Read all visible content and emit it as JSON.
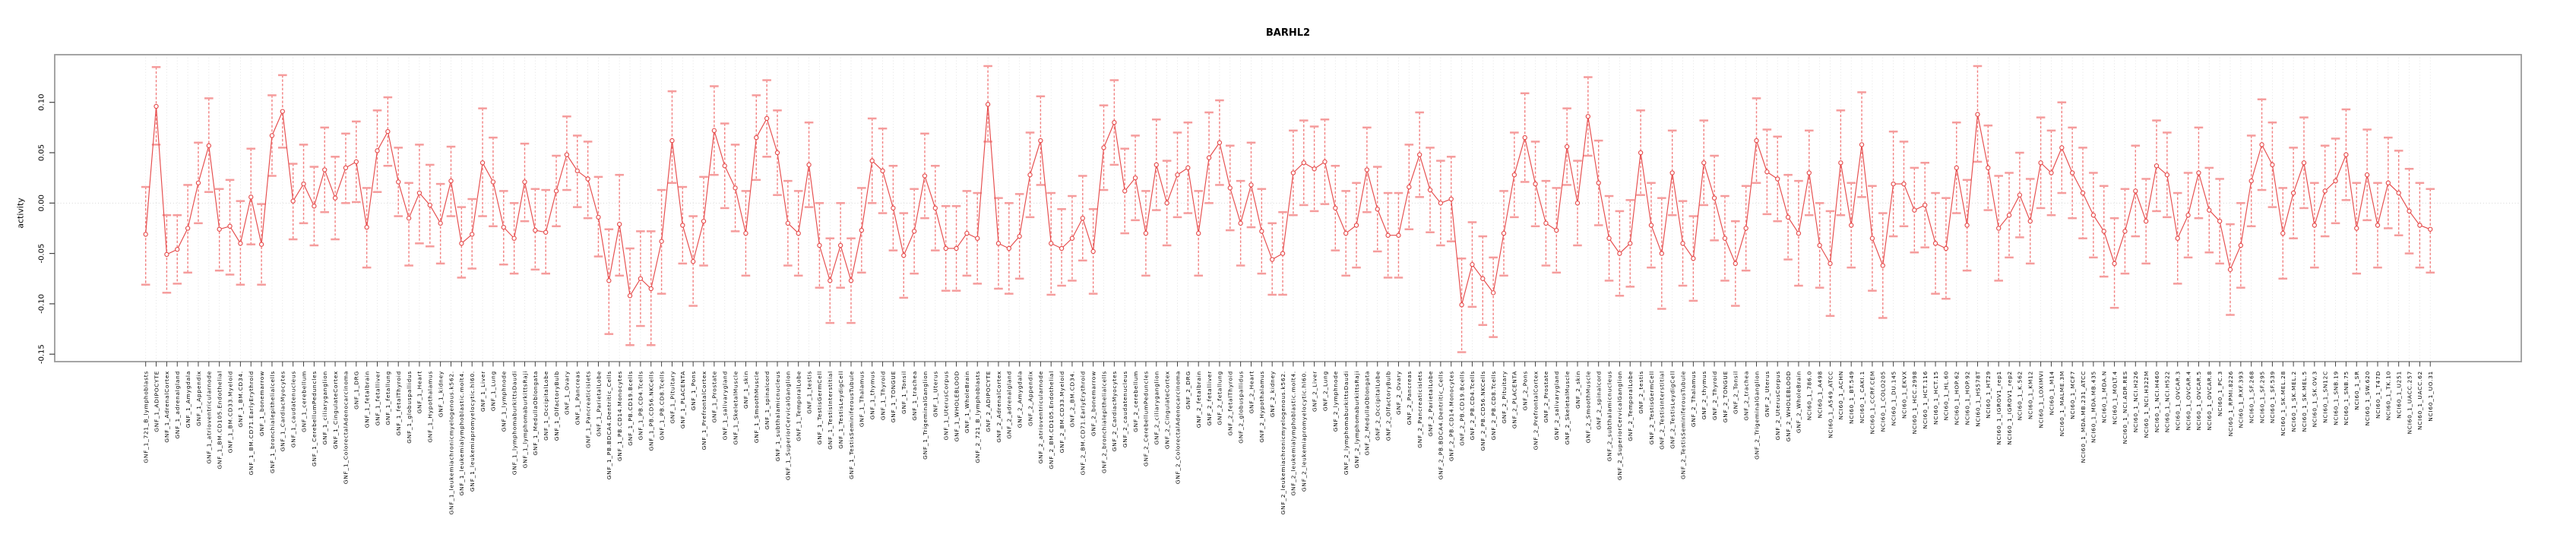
{
  "title": "BARHL2",
  "chart_data": {
    "type": "line",
    "subtype": "error-bar-series",
    "title": "BARHL2",
    "xlabel": "",
    "ylabel": "activity",
    "ylim": [
      -0.157,
      0.147
    ],
    "yticks": [
      0.1,
      0.05,
      0.0,
      -0.05,
      -0.1,
      -0.15
    ],
    "ytick_labels": [
      "0.10",
      "0.05",
      "0.00",
      "-0.05",
      "-0.10",
      "-0.15"
    ],
    "grid": "vertical-dotted-per-category",
    "zero_line": true,
    "legend": "none",
    "colors": {
      "line": "#e64c4c",
      "marker_stroke": "#e64c4c",
      "marker_fill": "#ffffff",
      "stem": "#f28080",
      "cap": "#f59c9c",
      "box": "#9b9b9b",
      "grid": "#dedede",
      "zero": "#cfcfcf",
      "tick": "#444444",
      "text": "#000000"
    },
    "categories": [
      "GNF_1_721_B_lymphoblasts",
      "GNF_1_ADIPOCYTE",
      "GNF_1_AdrenalCortex",
      "GNF_1_adrenalgland",
      "GNF_1_Amygdala",
      "GNF_1_Appendix",
      "GNF_1_atrioventricularnode",
      "GNF_1_BM.CD105.Endothelial",
      "GNF_1_BM.CD33.Myeloid",
      "GNF_1_BM.CD34.",
      "GNF_1_BM.CD71.EarlyErythroid",
      "GNF_1_bonemarrow",
      "GNF_1_bronchialepithelialcells",
      "GNF_1_CardiacMyocytes",
      "GNF_1_caudatenucleus",
      "GNF_1_cerebellum",
      "GNF_1_CerebellumPeduncles",
      "GNF_1_ciliaryganglion",
      "GNF_1_CingulateCortex",
      "GNF_1_ColorectalAdenocarcinoma",
      "GNF_1_DRG",
      "GNF_1_fetalbrain",
      "GNF_1_fetalliver",
      "GNF_1_fetallung",
      "GNF_1_fetalThyroid",
      "GNF_1_globuspallidus",
      "GNF_1_Heart",
      "GNF_1_Hypothalamus",
      "GNF_1_kidney",
      "GNF_1_leukemiachronicmyelogenous.k562.",
      "GNF_1_leukemialymphoblastic.molt4.",
      "GNF_1_leukemiapromyelocytic.hl60.",
      "GNF_1_Liver",
      "GNF_1_Lung",
      "GNF_1_lymphnode",
      "GNF_1_lymphomaburkittsDaudi",
      "GNF_1_lymphomaburkittsRaji",
      "GNF_1_MedullaOblongata",
      "GNF_1_OccipitalLobe",
      "GNF_1_OlfactoryBulb",
      "GNF_1_Ovary",
      "GNF_1_Pancreas",
      "GNF_1_Pancreaticislets",
      "GNF_1_ParietalLobe",
      "GNF_1_PB.BDCA4.Dentritic_Cells",
      "GNF_1_PB.CD14.Monocytes",
      "GNF_1_PB.CD19.Bcells",
      "GNF_1_PB.CD4.Tcells",
      "GNF_1_PB.CD56.NKCells",
      "GNF_1_PB.CD8.Tcells",
      "GNF_1_Pituitary",
      "GNF_1_PLACENTA",
      "GNF_1_Pons",
      "GNF_1_PrefrontalCortex",
      "GNF_1_Prostate",
      "GNF_1_salivarygland",
      "GNF_1_SkeletalMuscle",
      "GNF_1_skin",
      "GNF_1_SmoothMuscle",
      "GNF_1_spinalcord",
      "GNF_1_subthalamicnucleus",
      "GNF_1_SuperiorCervicalGanglion",
      "GNF_1_TemporalLobe",
      "GNF_1_testis",
      "GNF_1_TestisGermCell",
      "GNF_1_TestisInterstitial",
      "GNF_1_TestisLeydigCell",
      "GNF_1_TestisSeminiferousTubule",
      "GNF_1_Thalamus",
      "GNF_1_thymus",
      "GNF_1_Thyroid",
      "GNF_1_TONGUE",
      "GNF_1_Tonsil",
      "GNF_1_trachea",
      "GNF_1_TrigeminalGanglion",
      "GNF_1_Uterus",
      "GNF_1_UterusCorpus",
      "GNF_1_WHOLEBLOOD",
      "GNF_1_WholeBrain",
      "GNF_2_721_B_lymphoblasts",
      "GNF_2_ADIPOCYTE",
      "GNF_2_AdrenalCortex",
      "GNF_2_adrenalgland",
      "GNF_2_Amygdala",
      "GNF_2_Appendix",
      "GNF_2_atrioventricularnode",
      "GNF_2_BM.CD105.Endothelial",
      "GNF_2_BM.CD33.Myeloid",
      "GNF_2_BM.CD34.",
      "GNF_2_BM.CD71.EarlyErythroid",
      "GNF_2_bonemarrow",
      "GNF_2_bronchialepithelialcells",
      "GNF_2_CardiacMyocytes",
      "GNF_2_caudatenucleus",
      "GNF_2_cerebellum",
      "GNF_2_CerebellumPeduncles",
      "GNF_2_ciliaryganglion",
      "GNF_2_CingulateCortex",
      "GNF_2_ColorectalAdenocarcinoma",
      "GNF_2_DRG",
      "GNF_2_fetalbrain",
      "GNF_2_fetalliver",
      "GNF_2_fetallung",
      "GNF_2_fetalThyroid",
      "GNF_2_globuspallidus",
      "GNF_2_Heart",
      "GNF_2_Hypothalamus",
      "GNF_2_kidney",
      "GNF_2_leukemiachronicmyelogenous.k562.",
      "GNF_2_leukemialymphoblastic.molt4.",
      "GNF_2_leukemiapromyelocytic.hl60.",
      "GNF_2_Liver",
      "GNF_2_Lung",
      "GNF_2_lymphnode",
      "GNF_2_lymphomaburkittsDaudi",
      "GNF_2_lymphomaburkittsRaji",
      "GNF_2_MedullaOblongata",
      "GNF_2_OccipitalLobe",
      "GNF_2_OlfactoryBulb",
      "GNF_2_Ovary",
      "GNF_2_Pancreas",
      "GNF_2_Pancreaticislets",
      "GNF_2_ParietalLobe",
      "GNF_2_PB.BDCA4.Dentritic_Cells",
      "GNF_2_PB.CD14.Monocytes",
      "GNF_2_PB.CD19.Bcells",
      "GNF_2_PB.CD4.Tcells",
      "GNF_2_PB.CD56.NKCells",
      "GNF_2_PB.CD8.Tcells",
      "GNF_2_Pituitary",
      "GNF_2_PLACENTA",
      "GNF_2_Pons",
      "GNF_2_PrefrontalCortex",
      "GNF_2_Prostate",
      "GNF_2_salivarygland",
      "GNF_2_SkeletalMuscle",
      "GNF_2_skin",
      "GNF_2_SmoothMuscle",
      "GNF_2_spinalcord",
      "GNF_2_subthalamicnucleus",
      "GNF_2_SuperiorCervicalGanglion",
      "GNF_2_TemporalLobe",
      "GNF_2_testis",
      "GNF_2_TestisGermCell",
      "GNF_2_TestisInterstitial",
      "GNF_2_TestisLeydigCell",
      "GNF_2_TestisSeminiferousTubule",
      "GNF_2_Thalamus",
      "GNF_2_thymus",
      "GNF_2_Thyroid",
      "GNF_2_TONGUE",
      "GNF_2_Tonsil",
      "GNF_2_trachea",
      "GNF_2_TrigeminalGanglion",
      "GNF_2_Uterus",
      "GNF_2_UterusCorpus",
      "GNF_2_WHOLEBLOOD",
      "GNF_2_WholeBrain",
      "NCI60_1_786.0",
      "NCI60_1_A498",
      "NCI60_1_A549_ATCC",
      "NCI60_1_ACHN",
      "NCI60_1_BT.549",
      "NCI60_1_CAKI.1",
      "NCI60_1_CCRF.CEM",
      "NCI60_1_COLO205",
      "NCI60_1_DU.145",
      "NCI60_1_EKVX",
      "NCI60_1_HCC.2998",
      "NCI60_1_HCT.116",
      "NCI60_1_HCT.15",
      "NCI60_1_HL.60",
      "NCI60_1_HOP.62",
      "NCI60_1_HOP.92",
      "NCI60_1_HS578T",
      "NCI60_1_HT29",
      "NCI60_1_IGROV1_rep1",
      "NCI60_1_IGROV1_rep2",
      "NCI60_1_K.562",
      "NCI60_1_KM12",
      "NCI60_1_LOXIMVI",
      "NCI60_1_M14",
      "NCI60_1_MALME.3M",
      "NCI60_1_MCF7",
      "NCI60_1_MDA.MB.231_ATCC",
      "NCI60_1_MDA.MB.435",
      "NCI60_1_MDA.N",
      "NCI60_1_MOLT.4",
      "NCI60_1_NCI.ADR.RES",
      "NCI60_1_NCI.H226",
      "NCI60_1_NCI.H322M",
      "NCI60_1_NCI.H460",
      "NCI60_1_NCI.H522",
      "NCI60_1_OVCAR.3",
      "NCI60_1_OVCAR.4",
      "NCI60_1_OVCAR.5",
      "NCI60_1_OVCAR.8",
      "NCI60_1_PC.3",
      "NCI60_1_RPMI.8226",
      "NCI60_1_RXF.393",
      "NCI60_1_SF.268",
      "NCI60_1_SF.295",
      "NCI60_1_SF.539",
      "NCI60_1_SK.MEL.28",
      "NCI60_1_SK.MEL.2",
      "NCI60_1_SK.MEL.5",
      "NCI60_1_SK.OV.3",
      "NCI60_1_SN12C",
      "NCI60_1_SNB.19",
      "NCI60_1_SNB.75",
      "NCI60_1_SR",
      "NCI60_1_SW.620",
      "NCI60_1_T47D",
      "NCI60_1_TK.10",
      "NCI60_1_U251",
      "NCI60_1_UACC.257",
      "NCI60_1_UACC.62",
      "NCI60_1_UO.31"
    ],
    "values": [
      -0.031,
      0.096,
      -0.051,
      -0.046,
      -0.025,
      0.02,
      0.057,
      -0.026,
      -0.023,
      -0.04,
      0.006,
      -0.041,
      0.067,
      0.091,
      0.002,
      0.019,
      -0.003,
      0.033,
      0.005,
      0.035,
      0.041,
      -0.024,
      0.052,
      0.071,
      0.021,
      -0.015,
      0.01,
      -0.002,
      -0.02,
      0.022,
      -0.04,
      -0.031,
      0.04,
      0.021,
      -0.024,
      -0.035,
      0.021,
      -0.027,
      -0.029,
      0.012,
      0.048,
      0.032,
      0.024,
      -0.014,
      -0.077,
      -0.021,
      -0.092,
      -0.075,
      -0.085,
      -0.038,
      0.062,
      -0.022,
      -0.058,
      -0.018,
      0.072,
      0.037,
      0.015,
      -0.03,
      0.065,
      0.084,
      0.05,
      -0.02,
      -0.03,
      0.038,
      -0.042,
      -0.077,
      -0.042,
      -0.077,
      -0.027,
      0.042,
      0.032,
      -0.005,
      -0.052,
      -0.028,
      0.027,
      -0.005,
      -0.045,
      -0.045,
      -0.03,
      -0.035,
      0.098,
      -0.04,
      -0.045,
      -0.033,
      0.028,
      0.062,
      -0.04,
      -0.045,
      -0.035,
      -0.015,
      -0.048,
      0.055,
      0.08,
      0.012,
      0.025,
      -0.03,
      0.038,
      0.0,
      0.028,
      0.035,
      -0.03,
      0.045,
      0.06,
      0.015,
      -0.02,
      0.018,
      -0.028,
      -0.056,
      -0.05,
      0.03,
      0.04,
      0.034,
      0.041,
      -0.005,
      -0.03,
      -0.022,
      0.033,
      -0.006,
      -0.032,
      -0.032,
      0.016,
      0.048,
      0.013,
      0.0,
      0.004,
      -0.101,
      -0.061,
      -0.075,
      -0.089,
      -0.03,
      0.028,
      0.065,
      0.019,
      -0.02,
      -0.027,
      0.056,
      0.0,
      0.086,
      0.02,
      -0.035,
      -0.05,
      -0.04,
      0.05,
      -0.022,
      -0.05,
      0.03,
      -0.04,
      -0.055,
      0.04,
      0.005,
      -0.035,
      -0.06,
      -0.025,
      0.062,
      0.031,
      0.024,
      -0.014,
      -0.03,
      0.03,
      -0.042,
      -0.06,
      0.04,
      -0.022,
      0.058,
      -0.035,
      -0.062,
      0.019,
      0.019,
      -0.007,
      -0.002,
      -0.04,
      -0.045,
      0.035,
      -0.022,
      0.088,
      0.035,
      -0.025,
      -0.012,
      0.008,
      -0.018,
      0.04,
      0.03,
      0.055,
      0.03,
      0.01,
      -0.012,
      -0.028,
      -0.06,
      -0.028,
      0.012,
      -0.018,
      0.037,
      0.028,
      -0.035,
      -0.012,
      0.03,
      -0.007,
      -0.018,
      -0.066,
      -0.042,
      0.022,
      0.058,
      0.038,
      -0.03,
      0.01,
      0.04,
      -0.022,
      0.012,
      0.022,
      0.048,
      -0.025,
      0.028,
      -0.022,
      0.02,
      0.01,
      -0.008,
      -0.022,
      -0.026
    ],
    "err_lo": [
      -0.081,
      0.058,
      -0.089,
      -0.08,
      -0.069,
      -0.02,
      0.011,
      -0.067,
      -0.071,
      -0.081,
      -0.041,
      -0.081,
      0.027,
      0.055,
      -0.036,
      -0.02,
      -0.042,
      -0.009,
      -0.036,
      0.0,
      0.001,
      -0.064,
      0.011,
      0.037,
      -0.013,
      -0.062,
      -0.04,
      -0.043,
      -0.06,
      -0.013,
      -0.074,
      -0.065,
      -0.013,
      -0.023,
      -0.061,
      -0.07,
      -0.018,
      -0.066,
      -0.07,
      -0.023,
      0.013,
      -0.004,
      -0.015,
      -0.053,
      -0.13,
      -0.072,
      -0.141,
      -0.122,
      -0.141,
      -0.09,
      0.02,
      -0.06,
      -0.102,
      -0.062,
      0.028,
      -0.005,
      -0.028,
      -0.072,
      0.023,
      0.046,
      0.008,
      -0.062,
      -0.072,
      -0.004,
      -0.084,
      -0.119,
      -0.084,
      -0.119,
      -0.069,
      0.0,
      -0.01,
      -0.047,
      -0.094,
      -0.07,
      -0.015,
      -0.047,
      -0.087,
      -0.087,
      -0.072,
      -0.08,
      0.061,
      -0.085,
      -0.09,
      -0.075,
      -0.014,
      0.018,
      -0.091,
      -0.082,
      -0.077,
      -0.057,
      -0.09,
      0.013,
      0.038,
      -0.03,
      -0.017,
      -0.072,
      -0.007,
      -0.042,
      -0.014,
      -0.01,
      -0.072,
      0.0,
      0.018,
      -0.027,
      -0.062,
      -0.024,
      -0.07,
      -0.091,
      -0.091,
      -0.012,
      -0.002,
      -0.008,
      -0.001,
      -0.047,
      -0.072,
      -0.064,
      -0.009,
      -0.048,
      -0.074,
      -0.074,
      -0.026,
      0.006,
      -0.029,
      -0.042,
      -0.038,
      -0.148,
      -0.103,
      -0.121,
      -0.133,
      -0.072,
      -0.014,
      0.021,
      -0.023,
      -0.062,
      -0.069,
      0.018,
      -0.042,
      0.047,
      -0.022,
      -0.077,
      -0.092,
      -0.083,
      0.008,
      -0.064,
      -0.105,
      -0.012,
      -0.082,
      -0.097,
      -0.002,
      -0.037,
      -0.077,
      -0.102,
      -0.067,
      0.02,
      -0.011,
      -0.018,
      -0.056,
      -0.082,
      -0.012,
      -0.084,
      -0.112,
      -0.012,
      -0.064,
      0.006,
      -0.087,
      -0.114,
      -0.033,
      -0.023,
      -0.049,
      -0.044,
      -0.09,
      -0.095,
      -0.01,
      -0.067,
      0.041,
      -0.007,
      -0.077,
      -0.054,
      -0.034,
      -0.06,
      -0.005,
      -0.012,
      0.01,
      -0.015,
      -0.035,
      -0.054,
      -0.073,
      -0.104,
      -0.07,
      -0.033,
      -0.06,
      -0.008,
      -0.014,
      -0.08,
      -0.054,
      -0.015,
      -0.049,
      -0.06,
      -0.111,
      -0.084,
      -0.023,
      0.013,
      -0.004,
      -0.075,
      -0.035,
      -0.005,
      -0.064,
      -0.033,
      -0.02,
      0.003,
      -0.07,
      -0.017,
      -0.064,
      -0.025,
      -0.032,
      -0.05,
      -0.064,
      -0.069
    ],
    "err_hi": [
      0.016,
      0.135,
      -0.012,
      -0.012,
      0.018,
      0.06,
      0.104,
      0.014,
      0.023,
      0.002,
      0.054,
      -0.001,
      0.107,
      0.127,
      0.039,
      0.058,
      0.036,
      0.075,
      0.046,
      0.069,
      0.081,
      0.015,
      0.092,
      0.105,
      0.055,
      0.02,
      0.058,
      0.038,
      0.019,
      0.056,
      -0.004,
      0.004,
      0.094,
      0.065,
      0.012,
      0.0,
      0.059,
      0.014,
      0.013,
      0.047,
      0.086,
      0.067,
      0.061,
      0.026,
      -0.026,
      0.028,
      -0.045,
      -0.028,
      -0.028,
      0.013,
      0.111,
      0.016,
      -0.013,
      0.026,
      0.116,
      0.079,
      0.058,
      0.012,
      0.107,
      0.122,
      0.092,
      0.022,
      0.012,
      0.08,
      0.0,
      -0.035,
      0.0,
      -0.035,
      0.015,
      0.084,
      0.074,
      0.037,
      -0.01,
      0.014,
      0.069,
      0.037,
      -0.003,
      -0.003,
      0.012,
      0.01,
      0.136,
      0.005,
      0.0,
      0.009,
      0.07,
      0.106,
      0.01,
      -0.006,
      0.007,
      0.027,
      -0.006,
      0.097,
      0.122,
      0.054,
      0.067,
      0.012,
      0.083,
      0.042,
      0.07,
      0.08,
      0.012,
      0.09,
      0.102,
      0.057,
      0.022,
      0.06,
      0.014,
      -0.02,
      -0.009,
      0.072,
      0.082,
      0.076,
      0.083,
      0.037,
      0.012,
      0.02,
      0.075,
      0.036,
      0.01,
      0.01,
      0.058,
      0.09,
      0.055,
      0.042,
      0.046,
      -0.055,
      -0.019,
      -0.033,
      -0.054,
      0.012,
      0.07,
      0.109,
      0.061,
      0.022,
      0.015,
      0.094,
      0.042,
      0.125,
      0.062,
      0.007,
      -0.008,
      0.003,
      0.092,
      0.02,
      0.005,
      0.072,
      0.002,
      -0.013,
      0.082,
      0.047,
      0.007,
      -0.018,
      0.017,
      0.104,
      0.073,
      0.066,
      0.028,
      0.022,
      0.072,
      0.0,
      -0.008,
      0.092,
      0.02,
      0.11,
      0.017,
      -0.01,
      0.071,
      0.061,
      0.035,
      0.04,
      0.01,
      0.005,
      0.08,
      0.023,
      0.136,
      0.077,
      0.027,
      0.03,
      0.05,
      0.024,
      0.085,
      0.072,
      0.1,
      0.075,
      0.055,
      0.03,
      0.017,
      -0.015,
      0.014,
      0.057,
      0.024,
      0.082,
      0.07,
      0.01,
      0.03,
      0.075,
      0.035,
      0.024,
      -0.021,
      0.0,
      0.067,
      0.103,
      0.08,
      0.015,
      0.055,
      0.085,
      0.02,
      0.057,
      0.064,
      0.093,
      0.02,
      0.073,
      0.02,
      0.065,
      0.052,
      0.034,
      0.02,
      0.014
    ]
  }
}
